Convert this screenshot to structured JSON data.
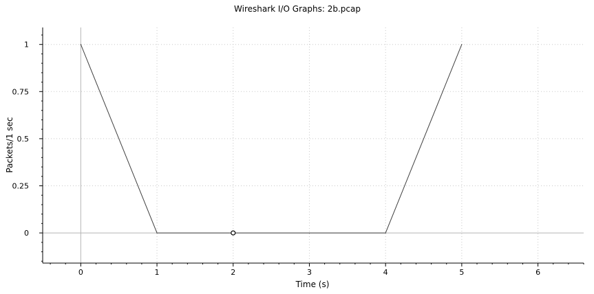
{
  "window": {
    "title": "Wireshark I/O Graphs: 2b.pcap"
  },
  "chart_data": {
    "type": "line",
    "title": "Wireshark I/O Graphs: 2b.pcap",
    "xlabel": "Time (s)",
    "ylabel": "Packets/1 sec",
    "xlim": [
      -0.5,
      6.6
    ],
    "ylim": [
      -0.16,
      1.09
    ],
    "x_ticks": [
      0,
      1,
      2,
      3,
      4,
      5,
      6
    ],
    "x_tick_labels": [
      "0",
      "1",
      "2",
      "3",
      "4",
      "5",
      "6"
    ],
    "y_ticks": [
      0,
      0.25,
      0.5,
      0.75,
      1
    ],
    "y_tick_labels": [
      "0",
      "0.25",
      "0.5",
      "0.75",
      "1"
    ],
    "grid": true,
    "legend": "none",
    "series": [
      {
        "x": [
          0,
          1,
          2,
          3,
          4,
          5
        ],
        "y": [
          1,
          0,
          0,
          0,
          0,
          1
        ],
        "color": "#404040"
      }
    ],
    "marker": {
      "x": 2,
      "y": 0,
      "shape": "open-circle"
    },
    "colors": {
      "grid": "#c8c8c8",
      "axis": "#000000",
      "zero_line": "#b4b4b4",
      "line": "#404040"
    }
  }
}
